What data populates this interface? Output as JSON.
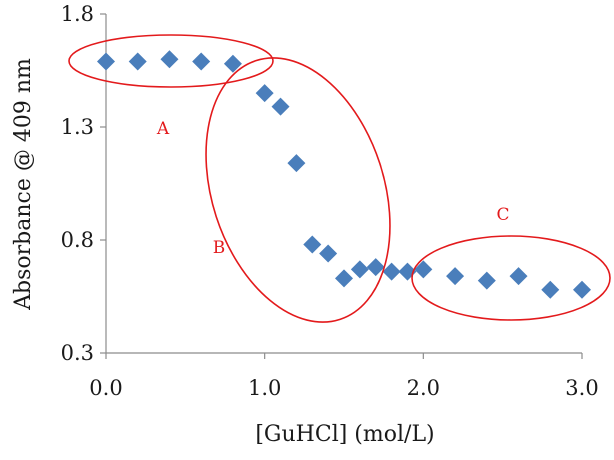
{
  "chart_data": {
    "type": "scatter",
    "title": "",
    "xlabel": "[GuHCl] (mol/L)",
    "ylabel": "Absorbance @ 409 nm",
    "xlim": [
      0,
      3.0
    ],
    "ylim": [
      0.3,
      1.8
    ],
    "x_ticks": [
      "0.0",
      "1.0",
      "2.0",
      "3.0"
    ],
    "y_ticks": [
      "0.3",
      "0.8",
      "1.3",
      "1.8"
    ],
    "marker": "diamond",
    "marker_color": "#4a7ebb",
    "grid": false,
    "legend": false,
    "series": [
      {
        "x": [
          0.0,
          0.2,
          0.4,
          0.6,
          0.8,
          1.0,
          1.1,
          1.2,
          1.3,
          1.4,
          1.5,
          1.6,
          1.7,
          1.8,
          1.9,
          2.0,
          2.2,
          2.4,
          2.6,
          2.8,
          3.0
        ],
        "y": [
          1.59,
          1.59,
          1.6,
          1.59,
          1.58,
          1.45,
          1.39,
          1.14,
          0.78,
          0.74,
          0.63,
          0.67,
          0.68,
          0.66,
          0.66,
          0.67,
          0.64,
          0.62,
          0.64,
          0.58,
          0.58
        ]
      }
    ],
    "annotations": [
      {
        "label": "A",
        "color": "#e31a1c"
      },
      {
        "label": "B",
        "color": "#e31a1c"
      },
      {
        "label": "C",
        "color": "#e31a1c"
      }
    ]
  }
}
